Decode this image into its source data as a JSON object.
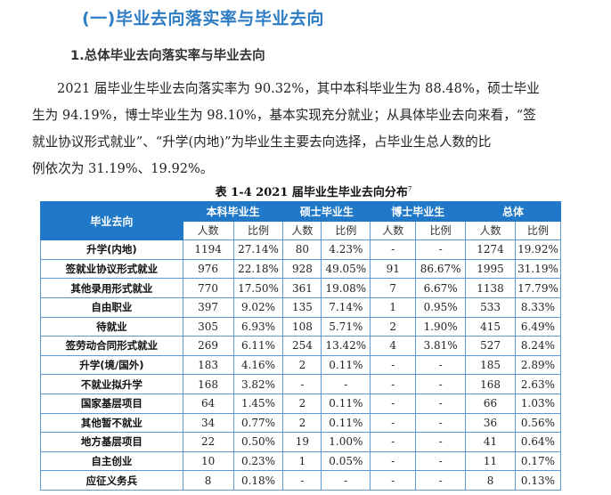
{
  "heading": "(一)毕业去向落实率与毕业去向",
  "subheading": "1.总体毕业去向落实率与毕业去向",
  "paragraph": {
    "lines": [
      "2021 届毕业生毕业去向落实率为 90.32%，其中本科毕业生为 88.48%，硕士毕业",
      "生为 94.19%，博士毕业生为 98.10%，基本实现充分就业；从具体毕业去向来看，“签",
      "就业协议形式就业”、“升学(内地)”为毕业生主要去向选择，占毕业生总人数的比",
      "例依次为 31.19%、19.92%。"
    ]
  },
  "table": {
    "caption": "表 1-4    2021 届毕业生毕业去向分布",
    "footnote_mark": "7",
    "header": {
      "first_col": "毕业去向",
      "groups": [
        "本科毕业生",
        "硕士毕业生",
        "博士毕业生",
        "总体"
      ],
      "sub": [
        "人数",
        "比例",
        "人数",
        "比例",
        "人数",
        "比例",
        "人数",
        "比例"
      ]
    },
    "rows": [
      {
        "label": "升学(内地)",
        "cells": [
          "1194",
          "27.14%",
          "80",
          "4.23%",
          "-",
          "-",
          "1274",
          "19.92%"
        ]
      },
      {
        "label": "签就业协议形式就业",
        "cells": [
          "976",
          "22.18%",
          "928",
          "49.05%",
          "91",
          "86.67%",
          "1995",
          "31.19%"
        ]
      },
      {
        "label": "其他录用形式就业",
        "cells": [
          "770",
          "17.50%",
          "361",
          "19.08%",
          "7",
          "6.67%",
          "1138",
          "17.79%"
        ]
      },
      {
        "label": "自由职业",
        "cells": [
          "397",
          "9.02%",
          "135",
          "7.14%",
          "1",
          "0.95%",
          "533",
          "8.33%"
        ]
      },
      {
        "label": "待就业",
        "cells": [
          "305",
          "6.93%",
          "108",
          "5.71%",
          "2",
          "1.90%",
          "415",
          "6.49%"
        ]
      },
      {
        "label": "签劳动合同形式就业",
        "cells": [
          "269",
          "6.11%",
          "254",
          "13.42%",
          "4",
          "3.81%",
          "527",
          "8.24%"
        ]
      },
      {
        "label": "升学(境/国外)",
        "cells": [
          "183",
          "4.16%",
          "2",
          "0.11%",
          "-",
          "-",
          "185",
          "2.89%"
        ]
      },
      {
        "label": "不就业拟升学",
        "cells": [
          "168",
          "3.82%",
          "-",
          "-",
          "-",
          "-",
          "168",
          "2.63%"
        ]
      },
      {
        "label": "国家基层项目",
        "cells": [
          "64",
          "1.45%",
          "2",
          "0.11%",
          "-",
          "-",
          "66",
          "1.03%"
        ]
      },
      {
        "label": "其他暂不就业",
        "cells": [
          "34",
          "0.77%",
          "2",
          "0.11%",
          "-",
          "-",
          "36",
          "0.56%"
        ]
      },
      {
        "label": "地方基层项目",
        "cells": [
          "22",
          "0.50%",
          "19",
          "1.00%",
          "-",
          "-",
          "41",
          "0.64%"
        ]
      },
      {
        "label": "自主创业",
        "cells": [
          "10",
          "0.23%",
          "1",
          "0.05%",
          "-",
          "-",
          "11",
          "0.17%"
        ]
      },
      {
        "label": "应征义务兵",
        "cells": [
          "8",
          "0.18%",
          "-",
          "-",
          "-",
          "-",
          "8",
          "0.13%"
        ]
      }
    ]
  },
  "colors": {
    "heading": "#2e7cc4",
    "table_header_bg": "#1f78c8",
    "table_border": "#5d9ad4"
  }
}
